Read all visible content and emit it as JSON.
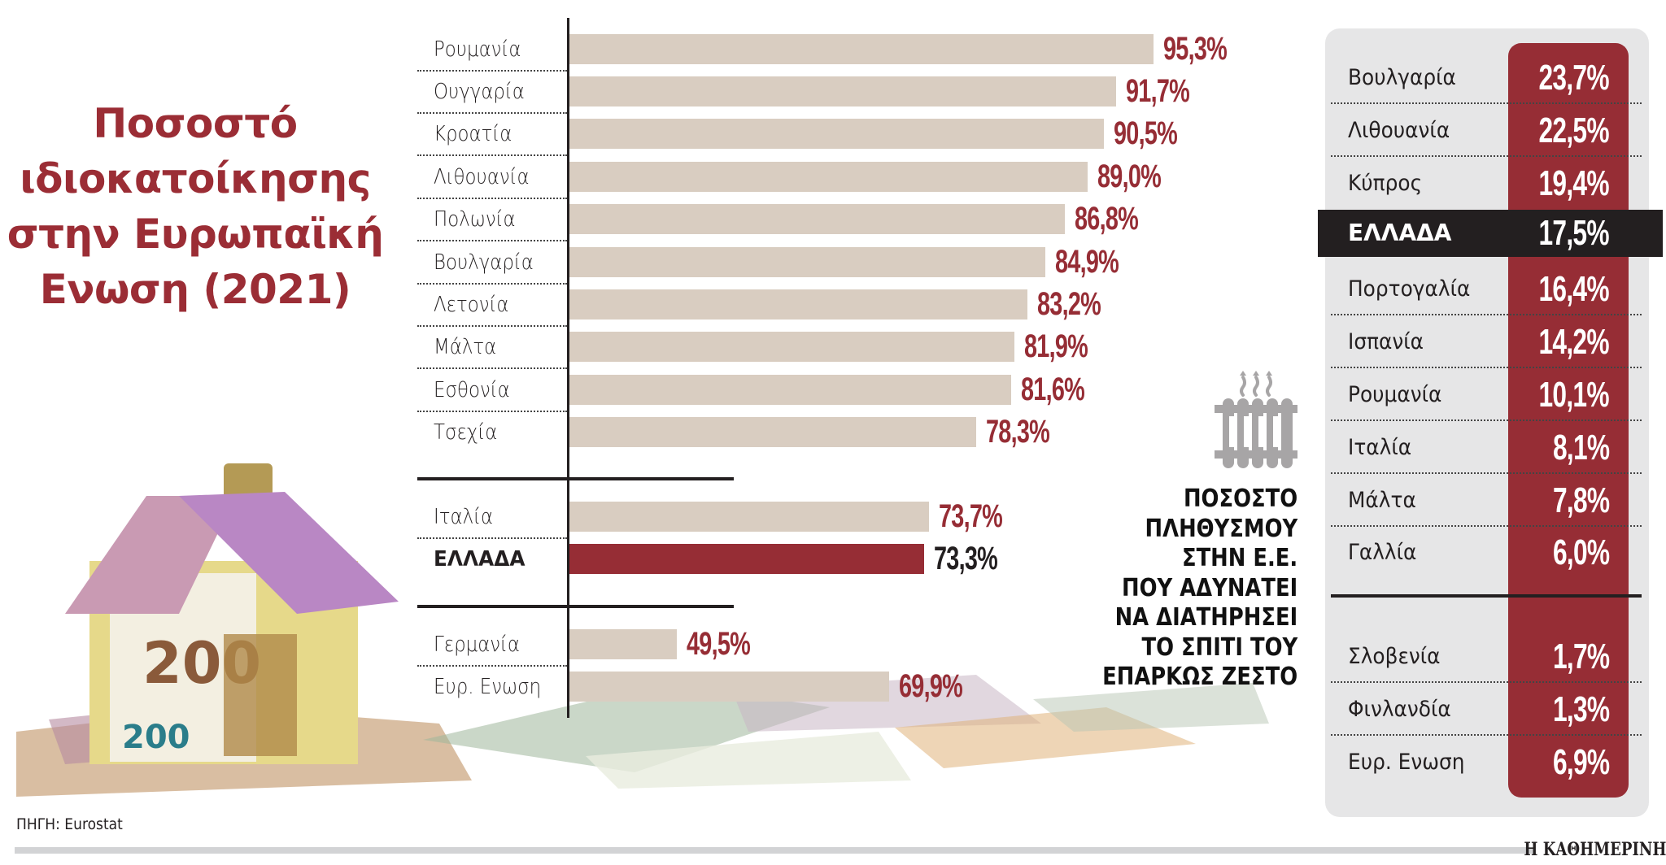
{
  "title": {
    "lines": [
      "Ποσοστό",
      "ιδιοκατοίκησης",
      "στην Ευρωπαϊκή",
      "Ενωση (2021)"
    ],
    "color": "#9b2d35"
  },
  "colors": {
    "bar": "#d9cdc1",
    "highlight_bar": "#962d35",
    "value_text": "#962d35",
    "panel_bg": "#e6e6e7",
    "panel_column": "#962d35",
    "dark": "#231f20"
  },
  "chart_data": [
    {
      "type": "bar",
      "orientation": "horizontal",
      "title": "Ποσοστό ιδιοκατοίκησης στην Ευρωπαϊκή Ενωση (2021)",
      "unit": "%",
      "groups": [
        {
          "name": "top",
          "categories": [
            "Ρουμανία",
            "Ουγγαρία",
            "Κροατία",
            "Λιθουανία",
            "Πολωνία",
            "Βουλγαρία",
            "Λετονία",
            "Μάλτα",
            "Εσθονία",
            "Τσεχία"
          ],
          "values": [
            95.3,
            91.7,
            90.5,
            89.0,
            86.8,
            84.9,
            83.2,
            81.9,
            81.6,
            78.3
          ],
          "labels": [
            "95,3%",
            "91,7%",
            "90,5%",
            "89,0%",
            "86,8%",
            "84,9%",
            "83,2%",
            "81,9%",
            "81,6%",
            "78,3%"
          ]
        },
        {
          "name": "italy-greece",
          "categories": [
            "Ιταλία",
            "ΕΛΛΑΔΑ"
          ],
          "values": [
            73.7,
            73.3
          ],
          "labels": [
            "73,7%",
            "73,3%"
          ],
          "highlight": "ΕΛΛΑΔΑ"
        },
        {
          "name": "bottom",
          "categories": [
            "Γερμανία",
            "Ευρ. Ενωση"
          ],
          "values": [
            49.5,
            69.9
          ],
          "labels": [
            "49,5%",
            "69,9%"
          ]
        }
      ],
      "xlabel": "",
      "ylabel": "",
      "grid": false,
      "legend": "none"
    },
    {
      "type": "table",
      "title": "ΠΟΣΟΣΤΟ ΠΛΗΘΥΣΜΟΥ ΣΤΗΝ Ε.Ε. ΠΟΥ ΑΔΥΝΑΤΕΙ ΝΑ ΔΙΑΤΗΡΗΣΕΙ ΤΟ ΣΠΙΤΙ ΤΟΥ ΕΠΑΡΚΩΣ ΖΕΣΤΟ",
      "unit": "%",
      "categories": [
        "Βουλγαρία",
        "Λιθουανία",
        "Κύπρος",
        "ΕΛΛΑΔΑ",
        "Πορτογαλία",
        "Ισπανία",
        "Ρουμανία",
        "Ιταλία",
        "Μάλτα",
        "Γαλλία",
        "Σλοβενία",
        "Φινλανδία",
        "Ευρ. Ενωση"
      ],
      "values": [
        23.7,
        22.5,
        19.4,
        17.5,
        16.4,
        14.2,
        10.1,
        8.1,
        7.8,
        6.0,
        1.7,
        1.3,
        6.9
      ],
      "highlight": "ΕΛΛΑΔΑ"
    }
  ],
  "main_chart": {
    "rows": [
      {
        "label": "Ρουμανία",
        "value": 95.3,
        "text": "95,3%"
      },
      {
        "label": "Ουγγαρία",
        "value": 91.7,
        "text": "91,7%"
      },
      {
        "label": "Κροατία",
        "value": 90.5,
        "text": "90,5%"
      },
      {
        "label": "Λιθουανία",
        "value": 89.0,
        "text": "89,0%"
      },
      {
        "label": "Πολωνία",
        "value": 86.8,
        "text": "86,8%"
      },
      {
        "label": "Βουλγαρία",
        "value": 84.9,
        "text": "84,9%"
      },
      {
        "label": "Λετονία",
        "value": 83.2,
        "text": "83,2%"
      },
      {
        "label": "Μάλτα",
        "value": 81.9,
        "text": "81,9%"
      },
      {
        "label": "Εσθονία",
        "value": 81.6,
        "text": "81,6%"
      },
      {
        "label": "Τσεχία",
        "value": 78.3,
        "text": "78,3%"
      },
      {
        "label": "Ιταλία",
        "value": 73.7,
        "text": "73,7%"
      },
      {
        "label": "ΕΛΛΑΔΑ",
        "value": 73.3,
        "text": "73,3%"
      },
      {
        "label": "Γερμανία",
        "value": 49.5,
        "text": "49,5%"
      },
      {
        "label": "Ευρ. Ενωση",
        "value": 69.9,
        "text": "69,9%"
      }
    ]
  },
  "heating": {
    "icon": "radiator-icon",
    "caption_lines": [
      "ΠΟΣΟΣΤΟ",
      "ΠΛΗΘΥΣΜΟΥ",
      "ΣΤΗΝ Ε.Ε.",
      "ΠΟΥ ΑΔΥΝΑΤΕΙ",
      "ΝΑ ΔΙΑΤΗΡΗΣΕΙ",
      "ΤΟ ΣΠΙΤΙ ΤΟΥ",
      "ΕΠΑΡΚΩΣ ΖΕΣΤΟ"
    ],
    "rows": [
      {
        "label": "Βουλγαρία",
        "text": "23,7%"
      },
      {
        "label": "Λιθουανία",
        "text": "22,5%"
      },
      {
        "label": "Κύπρος",
        "text": "19,4%"
      },
      {
        "label": "ΕΛΛΑΔΑ",
        "text": "17,5%"
      },
      {
        "label": "Πορτογαλία",
        "text": "16,4%"
      },
      {
        "label": "Ισπανία",
        "text": "14,2%"
      },
      {
        "label": "Ρουμανία",
        "text": "10,1%"
      },
      {
        "label": "Ιταλία",
        "text": "8,1%"
      },
      {
        "label": "Μάλτα",
        "text": "7,8%"
      },
      {
        "label": "Γαλλία",
        "text": "6,0%"
      },
      {
        "label": "Σλοβενία",
        "text": "1,7%"
      },
      {
        "label": "Φινλανδία",
        "text": "1,3%"
      },
      {
        "label": "Ευρ. Ενωση",
        "text": "6,9%"
      }
    ]
  },
  "footer": {
    "source": "ΠΗΓΗ: Eurostat",
    "brand": "Η ΚΑΘΗΜΕΡΙΝΗ"
  }
}
